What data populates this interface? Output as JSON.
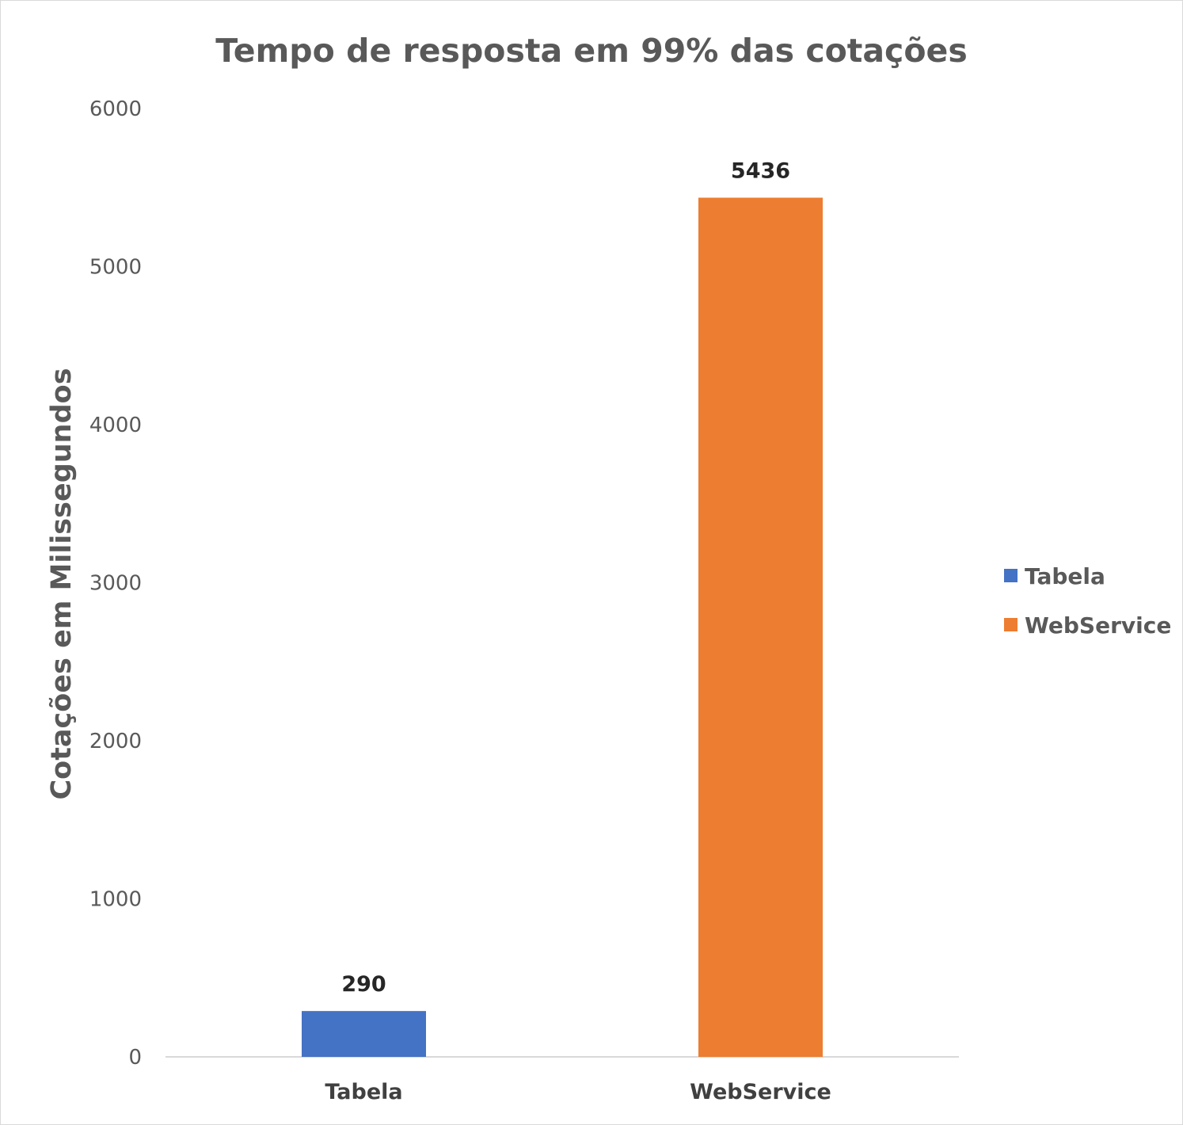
{
  "chart_data": {
    "type": "bar",
    "title": "Tempo de resposta em 99% das cotações",
    "xlabel": "",
    "ylabel": "Cotações em Milissegundos",
    "categories": [
      "Tabela",
      "WebService"
    ],
    "series": [
      {
        "name": "Tabela",
        "values": [
          290,
          null
        ],
        "color": "#4472c4"
      },
      {
        "name": "WebService",
        "values": [
          null,
          5436
        ],
        "color": "#ed7d31"
      }
    ],
    "ylim": [
      0,
      6000
    ],
    "yticks": [
      "0",
      "1000",
      "2000",
      "3000",
      "4000",
      "5000",
      "6000"
    ],
    "data_labels": [
      "290",
      "5436"
    ],
    "grid": false,
    "legend_position": "right"
  }
}
